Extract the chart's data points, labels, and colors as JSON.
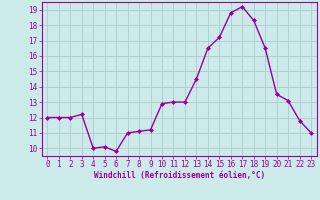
{
  "x": [
    0,
    1,
    2,
    3,
    4,
    5,
    6,
    7,
    8,
    9,
    10,
    11,
    12,
    13,
    14,
    15,
    16,
    17,
    18,
    19,
    20,
    21,
    22,
    23
  ],
  "y": [
    12,
    12,
    12,
    12.2,
    10,
    10.1,
    9.8,
    11,
    11.1,
    11.2,
    12.9,
    13,
    13,
    14.5,
    16.5,
    17.2,
    18.8,
    19.2,
    18.3,
    16.5,
    13.5,
    13.1,
    11.8,
    11
  ],
  "line_color": "#990099",
  "marker": "D",
  "marker_size": 2.0,
  "bg_color": "#cceaea",
  "grid_color": "#aacccc",
  "xlabel": "Windchill (Refroidissement éolien,°C)",
  "xlabel_color": "#990099",
  "tick_color": "#990099",
  "ylim": [
    9.5,
    19.5
  ],
  "xlim": [
    -0.5,
    23.5
  ],
  "yticks": [
    10,
    11,
    12,
    13,
    14,
    15,
    16,
    17,
    18,
    19
  ],
  "xticks": [
    0,
    1,
    2,
    3,
    4,
    5,
    6,
    7,
    8,
    9,
    10,
    11,
    12,
    13,
    14,
    15,
    16,
    17,
    18,
    19,
    20,
    21,
    22,
    23
  ],
  "spine_color": "#990099",
  "linewidth": 1.0
}
